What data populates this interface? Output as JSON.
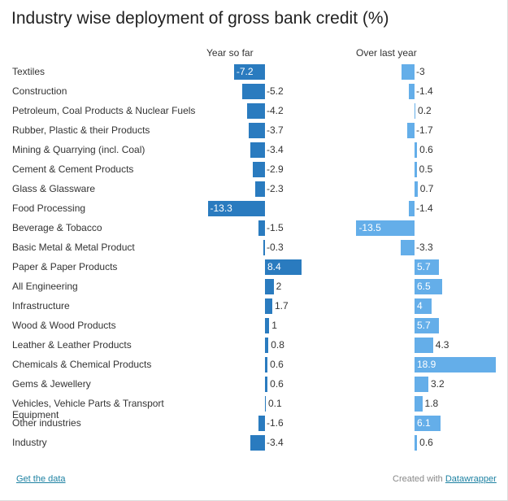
{
  "chart_data": {
    "type": "bar",
    "title": "Industry wise deployment of gross bank credit (%)",
    "categories": [
      "Textiles",
      "Construction",
      "Petroleum, Coal Products & Nuclear Fuels",
      "Rubber, Plastic & their Products",
      "Mining & Quarrying (incl. Coal)",
      "Cement & Cement Products",
      "Glass & Glassware",
      "Food Processing",
      "Beverage & Tobacco",
      "Basic Metal & Metal Product",
      "Paper & Paper Products",
      "All Engineering",
      "Infrastructure",
      "Wood & Wood Products",
      "Leather & Leather Products",
      "Chemicals & Chemical Products",
      "Gems & Jewellery",
      "Vehicles, Vehicle Parts & Transport Equipment",
      "Other industries",
      "Industry"
    ],
    "series": [
      {
        "name": "Year so far",
        "color": "#2a7bbf",
        "values": [
          -7.2,
          -5.2,
          -4.2,
          -3.7,
          -3.4,
          -2.9,
          -2.3,
          -13.3,
          -1.5,
          -0.3,
          8.4,
          2,
          1.7,
          1,
          0.8,
          0.6,
          0.6,
          0.1,
          -1.6,
          -3.4
        ]
      },
      {
        "name": "Over last year",
        "color": "#64aee9",
        "values": [
          -3,
          -1.4,
          0.2,
          -1.7,
          0.6,
          0.5,
          0.7,
          -1.4,
          -13.5,
          -3.3,
          5.7,
          6.5,
          4,
          5.7,
          4.3,
          18.9,
          3.2,
          1.8,
          6.1,
          0.6
        ]
      }
    ]
  },
  "footer": {
    "get_data_label": "Get the data",
    "created_with_label": "Created with",
    "datawrapper_label": "Datawrapper"
  }
}
